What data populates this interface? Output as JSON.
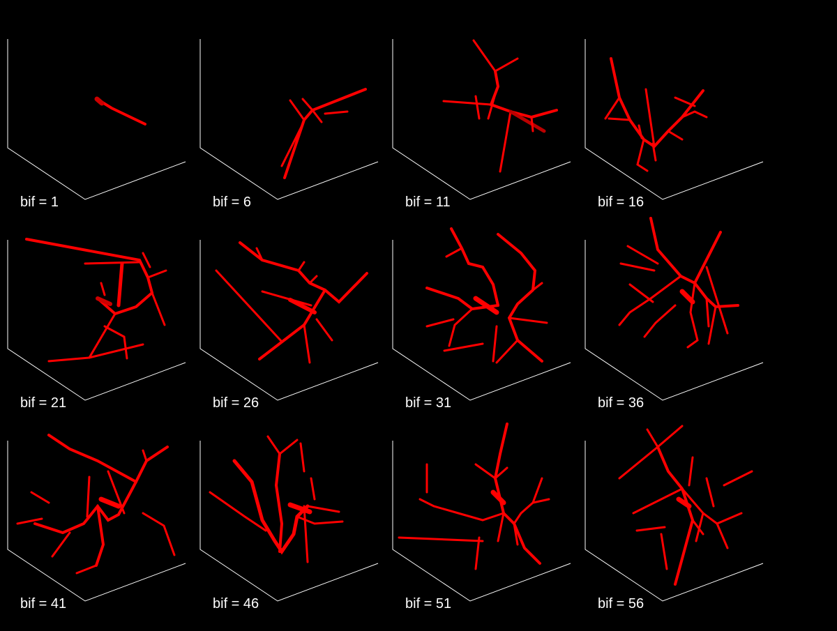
{
  "figure": {
    "background": "#000000",
    "axis_color": "#ffffff",
    "vessel_color": "#ff0000",
    "panels": [
      {
        "label": "bif = 1"
      },
      {
        "label": "bif = 6"
      },
      {
        "label": "bif = 11"
      },
      {
        "label": "bif = 16"
      },
      {
        "label": "bif = 21"
      },
      {
        "label": "bif = 26"
      },
      {
        "label": "bif = 31"
      },
      {
        "label": "bif = 36"
      },
      {
        "label": "bif = 41"
      },
      {
        "label": "bif = 46"
      },
      {
        "label": "bif = 51"
      },
      {
        "label": "bif = 56"
      }
    ]
  }
}
